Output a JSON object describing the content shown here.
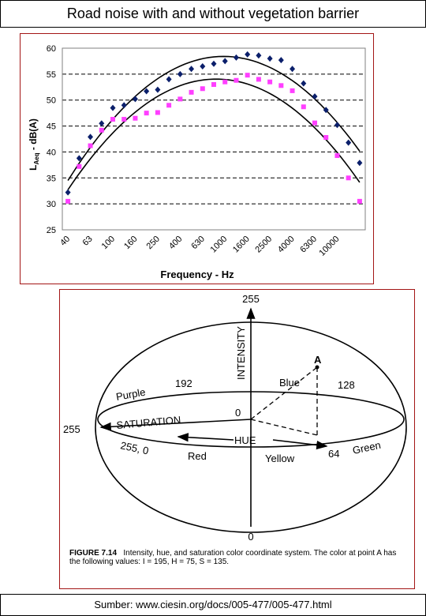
{
  "page": {
    "title": "Road noise with and without vegetation barrier",
    "footer": "Sumber: www.ciesin.org/docs/005-477/005-477.html"
  },
  "chart_data": {
    "type": "scatter",
    "title": "",
    "xlabel": "Frequency - Hz",
    "ylabel_main": "L",
    "ylabel_sub": "Aeq",
    "ylabel_rest": " - dB(A)",
    "ylim": [
      25,
      60
    ],
    "yticks": [
      25,
      30,
      35,
      40,
      45,
      50,
      55,
      60
    ],
    "grid": "dashed horizontal",
    "xtick_labels": [
      "40",
      "63",
      "100",
      "160",
      "250",
      "400",
      "630",
      "1000",
      "1600",
      "2500",
      "4000",
      "6300",
      "10000"
    ],
    "n_points": 27,
    "colors": {
      "series1": "#0b1f6b",
      "series2": "#ff3fff",
      "curve": "#000000",
      "grid": "#000000"
    },
    "series": [
      {
        "marker": "diamond",
        "values": [
          32.2,
          38.8,
          42.9,
          45.5,
          48.5,
          49.0,
          50.2,
          51.7,
          52.0,
          54.0,
          55.0,
          56.0,
          56.5,
          57.0,
          57.5,
          58.2,
          58.8,
          58.6,
          58.0,
          57.7,
          56.0,
          53.2,
          50.7,
          48.1,
          45.2,
          41.8,
          37.9
        ]
      },
      {
        "marker": "square",
        "values": [
          30.5,
          37.2,
          41.2,
          44.2,
          46.3,
          46.3,
          46.5,
          47.5,
          47.6,
          49.0,
          50.2,
          51.5,
          52.2,
          53.0,
          53.5,
          53.8,
          54.8,
          54.0,
          53.5,
          52.8,
          51.8,
          48.7,
          45.6,
          42.8,
          39.3,
          35.0,
          30.5
        ]
      }
    ]
  },
  "figure": {
    "top_value": "255",
    "bottom_value": "0",
    "intensity_label": "INTENSITY",
    "point_label": "A",
    "blue_label": "Blue",
    "purple_label": "Purple",
    "v192": "192",
    "v128": "128",
    "saturation_label": "SATURATION",
    "center_zero": "0",
    "left_value": "255",
    "hue_label": "HUE",
    "v2550": "255, 0",
    "red_label": "Red",
    "yellow_label": "Yellow",
    "v64": "64",
    "green_label": "Green",
    "caption_figure": "FIGURE 7.14",
    "caption_text": "Intensity, hue, and saturation color coordinate system. The color at point A has the following values: I = 195, H = 75, S = 135."
  }
}
